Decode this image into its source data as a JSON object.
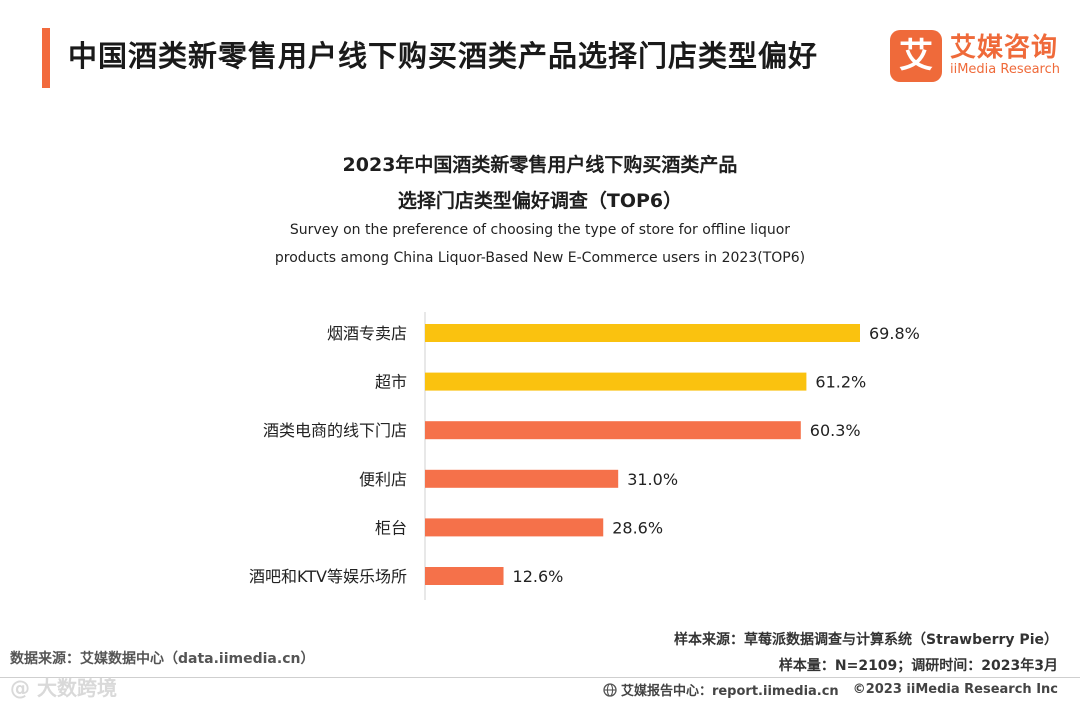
{
  "header": {
    "title": "中国酒类新零售用户线下购买酒类产品选择门店类型偏好",
    "logo_mark": "艾",
    "logo_cn": "艾媒咨询",
    "logo_en": "iiMedia Research"
  },
  "chart_data": {
    "type": "bar",
    "orientation": "horizontal",
    "title_line1": "2023年中国酒类新零售用户线下购买酒类产品",
    "title_line2": "选择门店类型偏好调查（TOP6）",
    "subtitle_line1": "Survey on the preference of choosing the type of store for offline liquor",
    "subtitle_line2": "products among China Liquor-Based New E-Commerce users in 2023(TOP6)",
    "categories": [
      "烟酒专卖店",
      "超市",
      "酒类电商的线下门店",
      "便利店",
      "柜台",
      "酒吧和KTV等娱乐场所"
    ],
    "values": [
      69.8,
      61.2,
      60.3,
      31.0,
      28.6,
      12.6
    ],
    "value_labels": [
      "69.8%",
      "61.2%",
      "60.3%",
      "31.0%",
      "28.6%",
      "12.6%"
    ],
    "bar_colors": [
      "#fac20f",
      "#fac20f",
      "#f5714a",
      "#f5714a",
      "#f5714a",
      "#f5714a"
    ],
    "xlim": [
      0,
      69.8
    ],
    "xlabel": "",
    "ylabel": ""
  },
  "footer": {
    "data_source": "数据来源：艾媒数据中心（data.iimedia.cn）",
    "sample_source": "样本来源：草莓派数据调查与计算系统（Strawberry Pie）",
    "sample_info": "样本量：N=2109；调研时间：2023年3月",
    "watermark": "@  大数跨境",
    "report_center": "艾媒报告中心：report.iimedia.cn",
    "copyright": "©2023  iiMedia Research  Inc"
  }
}
